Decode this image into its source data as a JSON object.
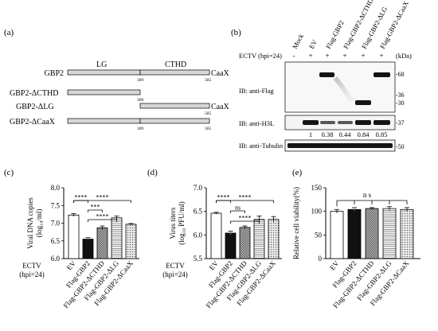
{
  "figure": {
    "panel_labels": {
      "a": "(a)",
      "b": "(b)",
      "c": "(c)",
      "d": "(d)",
      "e": "(e)"
    },
    "colors": {
      "ev": "#ffffff",
      "gbp2": "#111111",
      "dcthd": "#9a9a9a",
      "dlg": "#ffffff",
      "dcaax": "#c8c8c8",
      "line": "#000000",
      "domain_bar": "#d7d7d7"
    }
  },
  "panel_a": {
    "domain_labels": {
      "lg": "LG",
      "cthd": "CTHD"
    },
    "constructs": [
      {
        "name": "GBP2",
        "tail": "CaaX",
        "marks": [
          "309",
          "585"
        ]
      },
      {
        "name": "GBP2-ΔCTHD",
        "tail": "",
        "marks": [
          "309"
        ]
      },
      {
        "name": "GBP2-ΔLG",
        "tail": "CaaX",
        "marks": [
          "585"
        ]
      },
      {
        "name": "GBP2-ΔCaaX",
        "tail": "",
        "marks": [
          "309",
          "585"
        ]
      }
    ]
  },
  "panel_b": {
    "lane_labels": [
      "Mock",
      "EV",
      "Flag-GBP2",
      "Flag-GBP2-ΔCTHD",
      "Flag-GBP2-ΔLG",
      "Flag-GBP2-ΔCaaX"
    ],
    "ectv_label": "ECTV (hpi=24)",
    "ectv_status": [
      "-",
      "+",
      "+",
      "+",
      "+",
      "+"
    ],
    "kda_label": "(kDa)",
    "blots": [
      {
        "label": "IB: anti-Flag",
        "markers": [
          "-68",
          "-36",
          "-30"
        ]
      },
      {
        "label": "IB: anti-H3L",
        "markers": [
          "-37"
        ]
      },
      {
        "label": "IB: anti-Tubulin",
        "markers": [
          "-50"
        ]
      }
    ],
    "h3l_ratios": [
      "1",
      "0.38",
      "0.44",
      "0.84",
      "0.85"
    ]
  },
  "chart_data": [
    {
      "type": "bar",
      "panel": "c",
      "categories": [
        "EV",
        "Flag-GBP2",
        "Flag-GBP2-ΔCTHD",
        "Flag-GBP2-ΔLG",
        "Flag-GBP2-ΔCaaX"
      ],
      "values": [
        7.23,
        6.55,
        6.87,
        7.15,
        6.97
      ],
      "errors": [
        0.04,
        0.04,
        0.05,
        0.05,
        0.02
      ],
      "ylabel_line1": "Viral DNA copies",
      "ylabel_line2": "(log₁₀/ml)",
      "ylim": [
        6.0,
        8.0
      ],
      "yticks": [
        "6.0",
        "6.5",
        "7.0",
        "7.5",
        "8.0"
      ],
      "xcaption_line1": "ECTV",
      "xcaption_line2": "(hpi=24)",
      "significance": [
        {
          "from": 0,
          "to": 1,
          "label": "****"
        },
        {
          "from": 0,
          "to": 4,
          "label": "****"
        },
        {
          "from": 1,
          "to": 2,
          "label": "***"
        },
        {
          "from": 1,
          "to": 3,
          "label": "****"
        }
      ]
    },
    {
      "type": "bar",
      "panel": "d",
      "categories": [
        "EV",
        "Flag-GBP2",
        "Flag-GBP2-ΔCTHD",
        "Flag-GBP2-ΔLG",
        "Flag-GBP2-ΔCaaX"
      ],
      "values": [
        6.46,
        6.04,
        6.16,
        6.33,
        6.33
      ],
      "errors": [
        0.02,
        0.04,
        0.03,
        0.07,
        0.06
      ],
      "ylabel_line1": "Virus titers",
      "ylabel_line2": "(log₁₀ PFU/ml)",
      "ylim": [
        5.5,
        7.0
      ],
      "yticks": [
        "5.5",
        "6.0",
        "6.5",
        "7.0"
      ],
      "xcaption_line1": "ECTV",
      "xcaption_line2": "(hpi=24)",
      "significance": [
        {
          "from": 0,
          "to": 1,
          "label": "****"
        },
        {
          "from": 0,
          "to": 4,
          "label": "****"
        },
        {
          "from": 1,
          "to": 2,
          "label": "ns"
        },
        {
          "from": 1,
          "to": 3,
          "label": "****"
        }
      ]
    },
    {
      "type": "bar",
      "panel": "e",
      "categories": [
        "EV",
        "Flag-GBP2",
        "Flag-GBP2-ΔCTHD",
        "Flag-GBP2-ΔLG",
        "Flag-GBP2-ΔCaaX"
      ],
      "values": [
        100,
        104,
        106,
        106,
        104
      ],
      "errors": [
        4,
        4,
        2,
        4,
        4
      ],
      "ylabel_line1": "Relative cell viability(%)",
      "ylabel_line2": "",
      "ylim": [
        0,
        150
      ],
      "yticks": [
        "0",
        "50",
        "100",
        "150"
      ],
      "significance": [
        {
          "from": 0,
          "to": 4,
          "label": "n s",
          "bracket": "fan"
        }
      ]
    }
  ]
}
